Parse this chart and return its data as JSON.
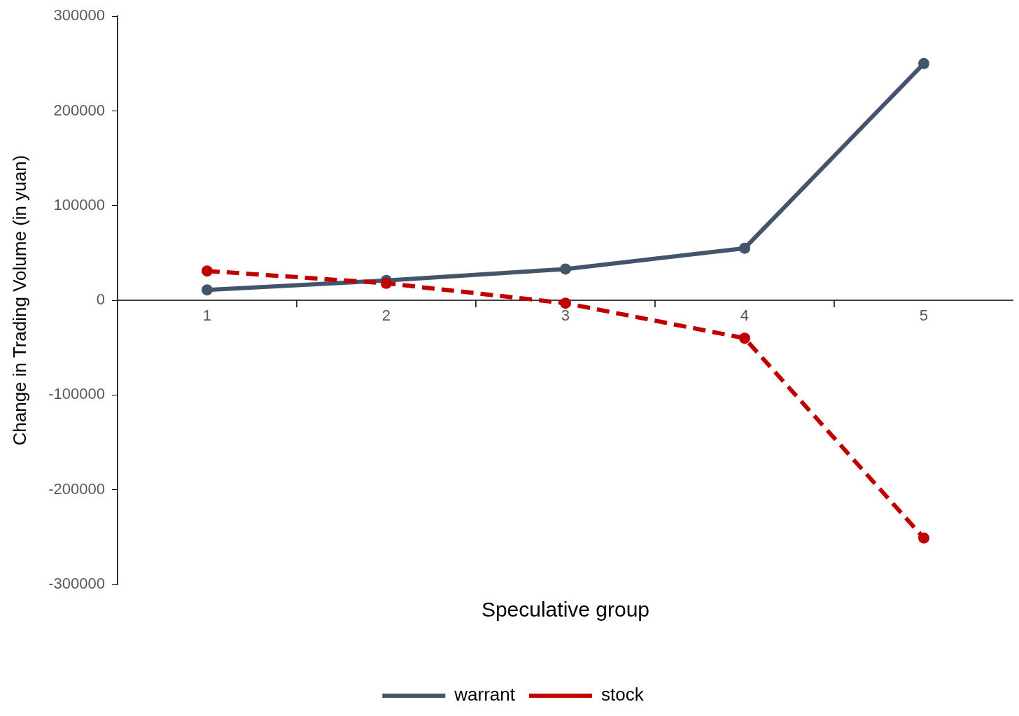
{
  "chart_data": {
    "type": "line",
    "xlabel": "Speculative group",
    "ylabel": "Change in Trading Volume (in yuan)",
    "categories": [
      "1",
      "2",
      "3",
      "4",
      "5"
    ],
    "series": [
      {
        "name": "warrant",
        "color": "#44546a",
        "line_style": "solid",
        "values": [
          11000,
          21000,
          33000,
          55000,
          250000
        ]
      },
      {
        "name": "stock",
        "color": "#c00000",
        "line_style": "dashed",
        "values": [
          31000,
          18000,
          -3000,
          -40000,
          -251000
        ]
      }
    ],
    "ylim": [
      -300000,
      300000
    ],
    "yticks": [
      -300000,
      -200000,
      -100000,
      0,
      100000,
      200000,
      300000
    ],
    "grid": false,
    "legend": "bottom",
    "marker": "circle"
  }
}
